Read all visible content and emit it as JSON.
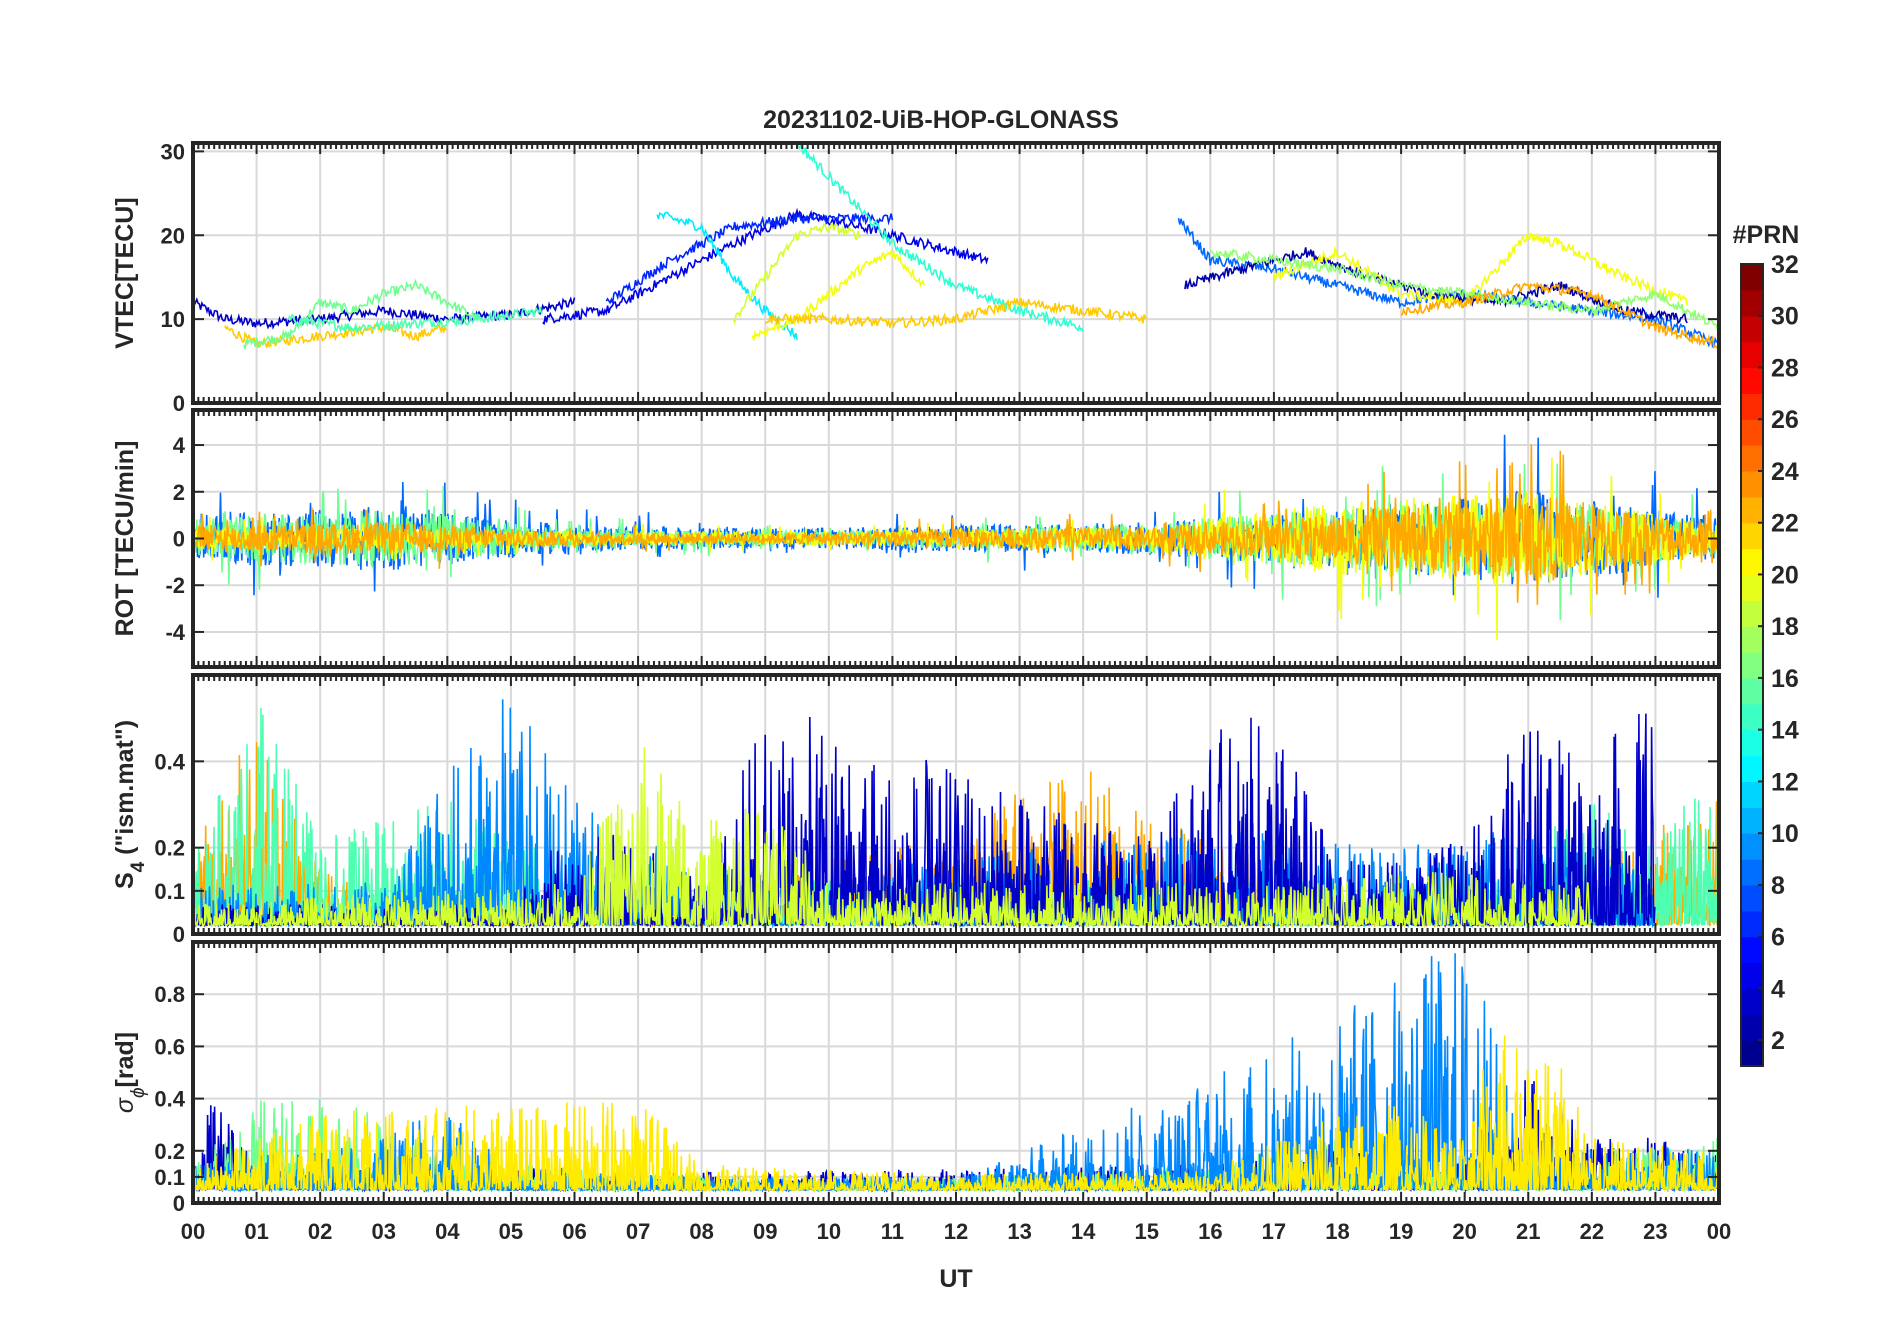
{
  "title": "20231102-UiB-HOP-GLONASS",
  "xlabel": "UT",
  "x_ticks": [
    "00",
    "01",
    "02",
    "03",
    "04",
    "05",
    "06",
    "07",
    "08",
    "09",
    "10",
    "11",
    "12",
    "13",
    "14",
    "15",
    "16",
    "17",
    "18",
    "19",
    "20",
    "21",
    "22",
    "23",
    "00"
  ],
  "colorbar": {
    "title": "#PRN",
    "range": [
      1,
      32
    ],
    "ticks": [
      "2",
      "4",
      "6",
      "8",
      "10",
      "12",
      "14",
      "16",
      "18",
      "20",
      "22",
      "24",
      "26",
      "28",
      "30",
      "32"
    ],
    "colormap": "jet",
    "colors": [
      "#00008f",
      "#0000ff",
      "#0080ff",
      "#00ffff",
      "#80ff80",
      "#ffff00",
      "#ff8000",
      "#ff0000",
      "#800000"
    ]
  },
  "panels": [
    {
      "id": "vtec",
      "ylabel": "VTEC[TECU]",
      "ylim": [
        0,
        31
      ],
      "yticks": [
        "0",
        "10",
        "20",
        "30"
      ],
      "grid": true
    },
    {
      "id": "rot",
      "ylabel": "ROT [TECU/min]",
      "ylim": [
        -5.5,
        5.5
      ],
      "yticks": [
        "-4",
        "-2",
        "0",
        "2",
        "4"
      ],
      "grid": true
    },
    {
      "id": "s4",
      "ylabel_main": "S",
      "ylabel_sub": "4",
      "ylabel_rest": " (\"ism.mat\")",
      "ylim": [
        0,
        0.6
      ],
      "yticks": [
        "0",
        "0.1",
        "0.2",
        "0.4"
      ],
      "grid": true
    },
    {
      "id": "sigma",
      "ylabel_main": "σ",
      "ylabel_sub": "ϕ",
      "ylabel_rest": "[rad]",
      "ylim": [
        0,
        1
      ],
      "yticks": [
        "0",
        "0.1",
        "0.2",
        "0.4",
        "0.6",
        "0.8"
      ],
      "grid": true
    }
  ],
  "chart_data": [
    {
      "type": "line",
      "title": "20231102-UiB-HOP-GLONASS",
      "xlabel": "UT",
      "ylabel": "VTEC[TECU]",
      "xlim": [
        0,
        24
      ],
      "ylim": [
        0,
        31
      ],
      "series_color_by": "#PRN",
      "series": [
        {
          "prn": 3,
          "x": [
            0.0,
            0.5,
            1.0,
            2.0,
            3.0,
            4.0,
            5.0,
            6.0
          ],
          "y": [
            12,
            10,
            9.5,
            10,
            11,
            10,
            10.5,
            12
          ]
        },
        {
          "prn": 22,
          "x": [
            0.5,
            1.0,
            1.5,
            2.0,
            3.0,
            3.5,
            4.0
          ],
          "y": [
            9,
            7,
            7.5,
            8,
            9,
            8,
            9
          ]
        },
        {
          "prn": 16,
          "x": [
            0.8,
            1.5,
            2.0,
            2.5,
            3.0,
            3.5,
            4.0,
            4.5
          ],
          "y": [
            7,
            8,
            12,
            11,
            13,
            14,
            12,
            10
          ]
        },
        {
          "prn": 15,
          "x": [
            1.5,
            2.5,
            3.5,
            4.5,
            5.5
          ],
          "y": [
            10,
            9,
            9.5,
            10,
            11
          ]
        },
        {
          "prn": 4,
          "x": [
            5.5,
            6.5,
            7.5,
            8.5,
            9.5,
            10.5,
            11.5,
            12.5
          ],
          "y": [
            10,
            11,
            15,
            19,
            22.5,
            21,
            19,
            17
          ]
        },
        {
          "prn": 6,
          "x": [
            6.5,
            7.5,
            8.5,
            9.5,
            10.5,
            11.0
          ],
          "y": [
            12,
            17,
            21,
            22,
            22,
            22
          ]
        },
        {
          "prn": 12,
          "x": [
            7.3,
            8.0,
            8.5,
            9.0,
            9.5
          ],
          "y": [
            22.5,
            21,
            15,
            11,
            8
          ]
        },
        {
          "prn": 14,
          "x": [
            9.5,
            10.0,
            10.5,
            11.0,
            12.0,
            13.0,
            14.0
          ],
          "y": [
            31,
            27,
            23,
            19,
            14,
            11,
            9
          ]
        },
        {
          "prn": 19,
          "x": [
            8.5,
            9.0,
            9.5,
            10.0,
            10.5
          ],
          "y": [
            10,
            15,
            20,
            21,
            20
          ]
        },
        {
          "prn": 20,
          "x": [
            8.8,
            9.5,
            10.0,
            10.5,
            11.0,
            11.5
          ],
          "y": [
            8,
            10,
            13,
            16,
            18,
            14
          ]
        },
        {
          "prn": 22,
          "x": [
            9.0,
            10.0,
            11.0,
            12.0,
            13.0,
            14.0,
            15.0
          ],
          "y": [
            10,
            10,
            9.5,
            10,
            12,
            11,
            10
          ]
        },
        {
          "prn": 8,
          "x": [
            15.5,
            16.0,
            17.0,
            18.0,
            19.0,
            20.0,
            21.0,
            22.0,
            23.0,
            24.0
          ],
          "y": [
            22,
            17,
            16,
            14,
            12,
            13,
            12,
            11,
            10,
            7
          ]
        },
        {
          "prn": 2,
          "x": [
            15.6,
            16.5,
            17.5,
            18.5,
            19.5,
            20.5,
            21.5,
            22.5,
            23.5
          ],
          "y": [
            14,
            16,
            18,
            15,
            13,
            12,
            14,
            11,
            10
          ]
        },
        {
          "prn": 20,
          "x": [
            17.0,
            18.0,
            19.0,
            20.0,
            21.0,
            21.5,
            22.5,
            23.5
          ],
          "y": [
            15,
            18,
            13,
            12,
            20,
            19,
            15,
            12
          ]
        },
        {
          "prn": 17,
          "x": [
            16.0,
            17.0,
            18.0,
            19.0,
            20.0,
            21.0,
            22.0,
            23.0,
            24.0
          ],
          "y": [
            18,
            17,
            16,
            14,
            13,
            12,
            11,
            13,
            9
          ]
        },
        {
          "prn": 23,
          "x": [
            19.0,
            20.0,
            21.0,
            22.0,
            23.0,
            24.0
          ],
          "y": [
            11,
            12,
            14,
            13,
            9,
            7
          ]
        }
      ]
    },
    {
      "type": "line",
      "ylabel": "ROT [TECU/min]",
      "xlim": [
        0,
        24
      ],
      "ylim": [
        -5.5,
        5.5
      ],
      "series_color_by": "#PRN",
      "series": [
        {
          "prn": 8,
          "x": [
            0,
            3,
            6,
            9,
            12,
            15,
            18,
            21,
            24
          ],
          "y_amplitude": [
            1.5,
            2.0,
            0.8,
            0.6,
            0.8,
            1.0,
            1.8,
            3.0,
            1.2
          ]
        },
        {
          "prn": 16,
          "x": [
            0,
            3,
            6,
            9,
            12,
            15,
            18,
            21,
            24
          ],
          "y_amplitude": [
            1.2,
            1.8,
            0.6,
            0.5,
            0.6,
            0.9,
            2.0,
            2.5,
            1.0
          ]
        },
        {
          "prn": 20,
          "x": [
            0,
            3,
            6,
            9,
            12,
            15,
            18,
            21,
            24
          ],
          "y_amplitude": [
            0.6,
            0.6,
            0.4,
            0.4,
            0.5,
            0.8,
            2.2,
            3.0,
            0.9
          ]
        },
        {
          "prn": 23,
          "x": [
            0,
            3,
            6,
            9,
            12,
            15,
            18,
            21,
            24
          ],
          "y_amplitude": [
            0.8,
            1.0,
            0.4,
            0.3,
            0.6,
            0.7,
            1.5,
            2.8,
            1.0
          ]
        }
      ]
    },
    {
      "type": "line",
      "ylabel": "S4 (\"ism.mat\")",
      "xlim": [
        0,
        24
      ],
      "ylim": [
        0,
        0.6
      ],
      "series_color_by": "#PRN",
      "series": [
        {
          "prn": 23,
          "x": [
            0,
            1,
            2,
            3,
            4,
            8,
            10,
            11,
            12,
            13,
            14,
            15,
            18,
            21,
            22,
            24
          ],
          "y_peak": [
            0.25,
            0.45,
            0.15,
            0.05,
            0.05,
            0.05,
            0.18,
            0.2,
            0.15,
            0.35,
            0.38,
            0.3,
            0.05,
            0.05,
            0.15,
            0.3
          ]
        },
        {
          "prn": 15,
          "x": [
            0,
            1,
            2,
            3,
            4,
            5,
            6,
            16,
            20,
            22,
            23,
            24
          ],
          "y_peak": [
            0.15,
            0.55,
            0.2,
            0.25,
            0.3,
            0.2,
            0.15,
            0.1,
            0.1,
            0.3,
            0.2,
            0.4
          ]
        },
        {
          "prn": 9,
          "x": [
            0,
            3,
            4,
            5,
            6,
            7,
            8,
            9,
            17,
            18,
            19,
            20,
            21,
            22,
            23
          ],
          "y_peak": [
            0.1,
            0.1,
            0.35,
            0.55,
            0.3,
            0.2,
            0.15,
            0.1,
            0.25,
            0.2,
            0.2,
            0.2,
            0.25,
            0.2,
            0.1
          ]
        },
        {
          "prn": 3,
          "x": [
            0,
            5,
            6,
            7,
            8,
            9,
            15,
            16,
            17,
            18,
            19,
            20,
            21,
            22,
            23
          ],
          "y_peak": [
            0.05,
            0.05,
            0.25,
            0.2,
            0.1,
            0.52,
            0.2,
            0.45,
            0.5,
            0.15,
            0.15,
            0.2,
            0.5,
            0.4,
            0.55
          ]
        },
        {
          "prn": 19,
          "x": [
            0,
            6,
            7,
            8,
            9,
            10,
            18,
            20,
            21,
            22
          ],
          "y_peak": [
            0.05,
            0.1,
            0.45,
            0.25,
            0.3,
            0.1,
            0.1,
            0.15,
            0.1,
            0.1
          ]
        }
      ]
    },
    {
      "type": "line",
      "ylabel": "σϕ[rad]",
      "xlim": [
        0,
        24
      ],
      "ylim": [
        0,
        1
      ],
      "series_color_by": "#PRN",
      "series": [
        {
          "prn": 3,
          "x": [
            0,
            0.3,
            1,
            2,
            4,
            8,
            12,
            16,
            17,
            18,
            19,
            20,
            21,
            22,
            23,
            24
          ],
          "y_peak": [
            0.1,
            0.38,
            0.1,
            0.1,
            0.1,
            0.07,
            0.08,
            0.1,
            0.12,
            0.2,
            0.15,
            0.1,
            0.45,
            0.2,
            0.2,
            0.15
          ]
        },
        {
          "prn": 16,
          "x": [
            0,
            1,
            2,
            3,
            4,
            5,
            6,
            8,
            12,
            16,
            18,
            20,
            22,
            24
          ],
          "y_peak": [
            0.1,
            0.35,
            0.35,
            0.3,
            0.1,
            0.1,
            0.08,
            0.05,
            0.05,
            0.1,
            0.2,
            0.15,
            0.15,
            0.2
          ]
        },
        {
          "prn": 9,
          "x": [
            0,
            3,
            3.5,
            4,
            4.5,
            5,
            8,
            12,
            17,
            20,
            21,
            24
          ],
          "y_peak": [
            0.1,
            0.2,
            0.3,
            0.3,
            0.2,
            0.1,
            0.05,
            0.05,
            0.55,
            1.0,
            0.2,
            0.15
          ]
        },
        {
          "prn": 21,
          "x": [
            0,
            2,
            7,
            8,
            12,
            16,
            18,
            19,
            20,
            20.5,
            21,
            21.5,
            22,
            24
          ],
          "y_peak": [
            0.1,
            0.3,
            0.35,
            0.1,
            0.06,
            0.08,
            0.3,
            0.35,
            0.2,
            0.65,
            0.6,
            0.6,
            0.2,
            0.15
          ]
        }
      ]
    }
  ]
}
